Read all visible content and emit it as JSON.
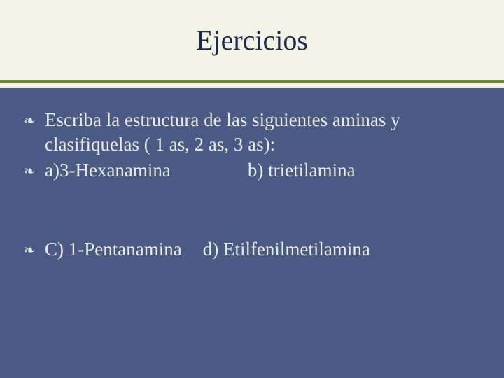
{
  "slide": {
    "title": "Ejercicios",
    "bullets": {
      "b0": "Escriba la estructura de las siguientes aminas y clasifiquelas ( 1 as, 2 as, 3 as):",
      "b1_a": " a)3-Hexanamina",
      "b1_b": "b) trietilamina",
      "b2_a": "C) 1-Pentanamina",
      "b2_b": "d) Etilfenilmetilamina"
    },
    "colors": {
      "title_bg": "#f3f2e7",
      "title_fg": "#1e2a4a",
      "accent_line": "#6b8a33",
      "body_bg": "#4a5a84",
      "body_fg": "#e9e9e3"
    },
    "bullet_glyph": "❧",
    "fontsizes": {
      "title": 40,
      "body": 27
    }
  }
}
